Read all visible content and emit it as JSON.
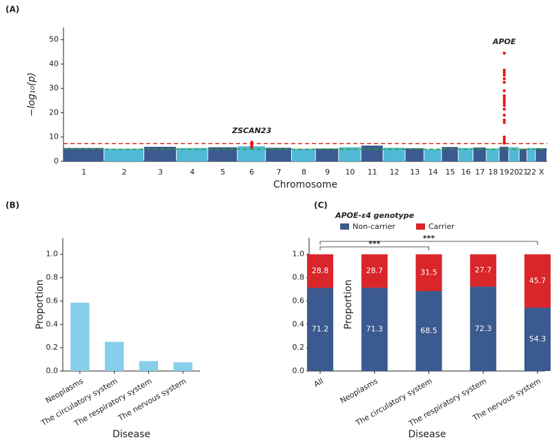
{
  "chart_data": [
    {
      "type": "manhattan",
      "panel": "(A)",
      "xlabel": "Chromosome",
      "ylabel": "−log₁₀(p)",
      "categories": [
        "1",
        "2",
        "3",
        "4",
        "5",
        "6",
        "7",
        "8",
        "9",
        "10",
        "11",
        "12",
        "13",
        "14",
        "15",
        "16",
        "17",
        "18",
        "19",
        "20",
        "21",
        "22",
        "X"
      ],
      "values": [
        5.5,
        5.2,
        6.0,
        5.5,
        5.8,
        6.2,
        5.6,
        5.2,
        5.3,
        5.8,
        6.5,
        5.6,
        5.4,
        5.0,
        5.9,
        5.5,
        5.7,
        5.3,
        6.0,
        5.8,
        5.2,
        5.5,
        5.4
      ],
      "colors": [
        "#3b5a8f",
        "#4fb9d6"
      ],
      "ylim": [
        0,
        55
      ],
      "yticks": [
        0,
        10,
        20,
        30,
        40,
        50
      ],
      "hlines": [
        {
          "value": 7.3,
          "color": "#d62728"
        },
        {
          "value": 5,
          "color": "#2ca02c"
        }
      ],
      "highlight_color": "#e41a1c",
      "highlights": [
        {
          "label": "ZSCAN23",
          "chromosome": "6",
          "values": [
            7.9,
            7.4,
            7.0,
            6.6,
            6.2,
            5.8
          ]
        },
        {
          "label": "APOE",
          "chromosome": "19",
          "values": [
            44.5,
            37.5,
            36.5,
            35.5,
            34,
            32.5,
            29,
            27,
            26,
            25,
            24,
            23,
            21.5,
            19,
            17,
            16,
            10,
            9,
            8,
            7.5
          ]
        }
      ]
    },
    {
      "type": "bar",
      "panel": "(B)",
      "xlabel": "Disease",
      "ylabel": "Proportion",
      "categories": [
        "Neoplasms",
        "The circulatory system",
        "The respiratory system",
        "The nervous system"
      ],
      "values": [
        0.585,
        0.25,
        0.085,
        0.075
      ],
      "color": "#87ceeb",
      "ylim": [
        0,
        1.14
      ],
      "yticks": [
        {
          "value": 0,
          "label": "0.0"
        },
        {
          "value": 0.2,
          "label": "0.2"
        },
        {
          "value": 0.4,
          "label": "0.4"
        },
        {
          "value": 0.6,
          "label": "0.6"
        },
        {
          "value": 0.8,
          "label": "0.8"
        },
        {
          "value": 1,
          "label": "1.0"
        }
      ]
    },
    {
      "type": "stacked_bar",
      "panel": "(C)",
      "xlabel": "Disease",
      "ylabel": "Proportion",
      "legend_title": "APOE-ε4 genotype",
      "categories": [
        "All",
        "Neoplasms",
        "The circulatory system",
        "The respiratory system",
        "The nervous system"
      ],
      "series": [
        {
          "name": "Non-carrier",
          "color": "#3b5a8f",
          "values": [
            0.712,
            0.713,
            0.685,
            0.723,
            0.543
          ],
          "value_labels": [
            "71.2",
            "71.3",
            "68.5",
            "72.3",
            "54.3"
          ]
        },
        {
          "name": "Carrier",
          "color": "#d9262b",
          "values": [
            0.288,
            0.287,
            0.315,
            0.277,
            0.457
          ],
          "value_labels": [
            "28.8",
            "28.7",
            "31.5",
            "27.7",
            "45.7"
          ]
        }
      ],
      "ylim": [
        0,
        1.14
      ],
      "yticks": [
        {
          "value": 0,
          "label": "0.0"
        },
        {
          "value": 0.2,
          "label": "0.2"
        },
        {
          "value": 0.4,
          "label": "0.4"
        },
        {
          "value": 0.6,
          "label": "0.6"
        },
        {
          "value": 0.8,
          "label": "0.8"
        },
        {
          "value": 1,
          "label": "1.0"
        }
      ],
      "brackets": [
        {
          "from": "All",
          "to": "The circulatory system",
          "label": "***"
        },
        {
          "from": "All",
          "to": "The nervous system",
          "label": "***"
        }
      ]
    }
  ]
}
